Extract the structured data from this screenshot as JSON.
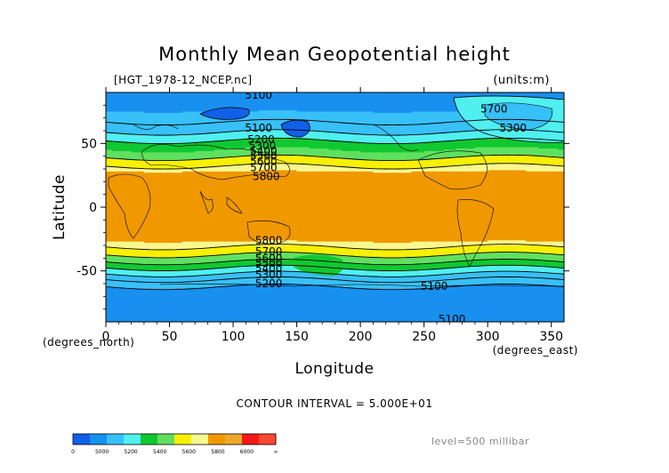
{
  "chart_data": {
    "type": "heatmap",
    "title": "Monthly Mean Geopotential height",
    "file_label": "[HGT_1978-12_NCEP.nc]",
    "units_label": "(units:m)",
    "xlabel": "Longitude",
    "ylabel": "Latitude",
    "x_unit_label": "(degrees_east)",
    "y_unit_label": "(degrees_north)",
    "xlim": [
      0,
      360
    ],
    "ylim": [
      -90,
      90
    ],
    "x_ticks": [
      0,
      50,
      100,
      150,
      200,
      250,
      300,
      350
    ],
    "y_ticks": [
      -50,
      0,
      50
    ],
    "contour_interval_text": "CONTOUR INTERVAL = 5.000E+01",
    "level_text": "level=500 millibar",
    "colorbar": {
      "labels": [
        "0",
        "5000",
        "5200",
        "5400",
        "5600",
        "5800",
        "6000",
        "∞"
      ],
      "colors": [
        "#1060e8",
        "#1890f0",
        "#38c0f8",
        "#50f0f0",
        "#10c830",
        "#60e060",
        "#f8f000",
        "#f8f890",
        "#f09800",
        "#f0a828",
        "#f81818",
        "#f84830"
      ]
    },
    "zonal_profile": {
      "latitudes": [
        90,
        75,
        60,
        50,
        45,
        40,
        35,
        30,
        25,
        0,
        -25,
        -30,
        -35,
        -40,
        -45,
        -50,
        -55,
        -60,
        -75,
        -90
      ],
      "heights": [
        5150,
        5200,
        5380,
        5530,
        5600,
        5680,
        5760,
        5830,
        5880,
        5880,
        5870,
        5820,
        5740,
        5660,
        5560,
        5450,
        5350,
        5220,
        5100,
        5050
      ]
    },
    "contour_labels": [
      {
        "text": "5100",
        "lon": 120,
        "lat": 88
      },
      {
        "text": "5100",
        "lon": 120,
        "lat": 62
      },
      {
        "text": "5200",
        "lon": 122,
        "lat": 53
      },
      {
        "text": "5300",
        "lon": 123,
        "lat": 48
      },
      {
        "text": "5400",
        "lon": 124,
        "lat": 44
      },
      {
        "text": "5500",
        "lon": 124,
        "lat": 40
      },
      {
        "text": "5600",
        "lon": 124,
        "lat": 36
      },
      {
        "text": "5700",
        "lon": 124,
        "lat": 31
      },
      {
        "text": "5800",
        "lon": 126,
        "lat": 24
      },
      {
        "text": "5700",
        "lon": 305,
        "lat": 77
      },
      {
        "text": "5300",
        "lon": 320,
        "lat": 62
      },
      {
        "text": "5800",
        "lon": 128,
        "lat": -26
      },
      {
        "text": "5700",
        "lon": 128,
        "lat": -35
      },
      {
        "text": "5600",
        "lon": 128,
        "lat": -40
      },
      {
        "text": "5500",
        "lon": 128,
        "lat": -44
      },
      {
        "text": "5400",
        "lon": 128,
        "lat": -48
      },
      {
        "text": "5300",
        "lon": 128,
        "lat": -53
      },
      {
        "text": "5200",
        "lon": 128,
        "lat": -60
      },
      {
        "text": "5100",
        "lon": 258,
        "lat": -62
      },
      {
        "text": "5100",
        "lon": 272,
        "lat": -88
      }
    ]
  }
}
